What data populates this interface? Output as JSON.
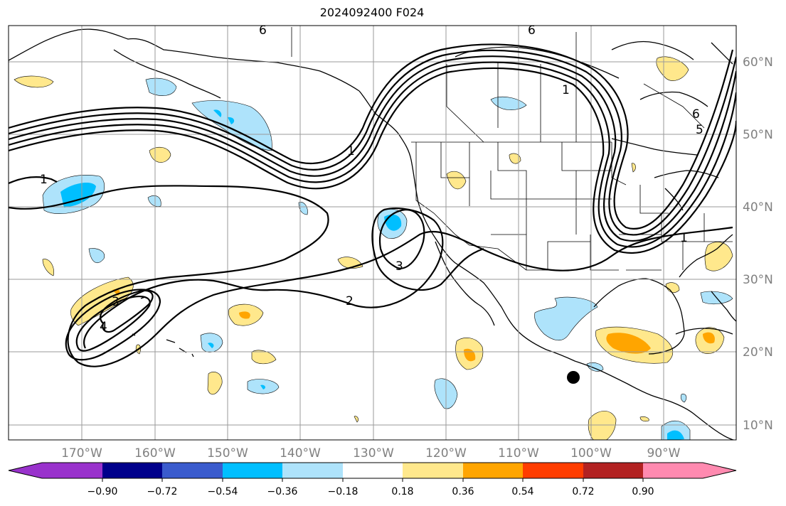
{
  "title": "2024092400 F024",
  "lon_labels": [
    "170°W",
    "160°W",
    "150°W",
    "140°W",
    "130°W",
    "120°W",
    "110°W",
    "100°W",
    "90°W"
  ],
  "lat_labels": [
    "60°N",
    "50°N",
    "40°N",
    "30°N",
    "20°N",
    "10°N"
  ],
  "colorbar": {
    "colors": [
      "#9932cc",
      "#00008b",
      "#3a5bcd",
      "#00bfff",
      "#aee3fb",
      "#ffffff",
      "#ffe88c",
      "#ffa500",
      "#ff3d00",
      "#b22222",
      "#ff8ab0"
    ],
    "tick_labels": [
      "−0.90",
      "−0.72",
      "−0.54",
      "−0.36",
      "−0.18",
      "0.18",
      "0.36",
      "0.54",
      "0.72",
      "0.90"
    ]
  },
  "contour_labels": [
    "1",
    "1",
    "1",
    "1",
    "2",
    "3",
    "3",
    "4",
    "5",
    "6",
    "6",
    "6"
  ],
  "marker": "black-dot"
}
